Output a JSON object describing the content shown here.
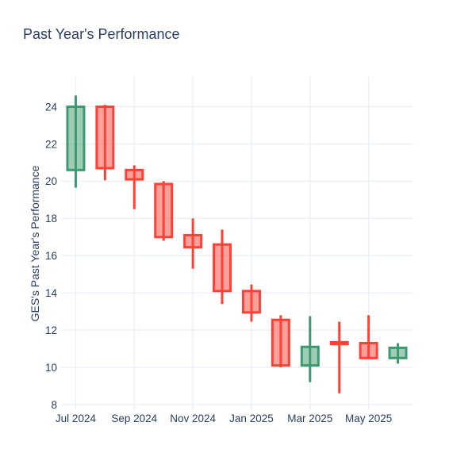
{
  "title": "Past Year's Performance",
  "colors": {
    "font": "#2a3f5f",
    "background": "#ffffff",
    "grid": "#ebf0f8",
    "increasing_line": "#3D9970",
    "increasing_fill": "rgba(61,153,112,0.5)",
    "decreasing_line": "#FF4136",
    "decreasing_fill": "rgba(255,65,54,0.5)"
  },
  "chart_data": {
    "type": "candlestick",
    "title": "Past Year's Performance",
    "xlabel": "",
    "ylabel": "GES's Past Year's Performance",
    "legend": "none",
    "grid": true,
    "ylim": [
      7.7,
      25.6
    ],
    "y_ticks": [
      8,
      10,
      12,
      14,
      16,
      18,
      20,
      22,
      24
    ],
    "x_tick_labels": [
      "Jul 2024",
      "Sep 2024",
      "Nov 2024",
      "Jan 2025",
      "Mar 2025",
      "May 2025"
    ],
    "x_tick_indices": [
      0,
      2,
      4,
      6,
      8,
      10
    ],
    "categories": [
      "Jul 2024",
      "Aug 2024",
      "Sep 2024",
      "Oct 2024",
      "Nov 2024",
      "Dec 2024",
      "Jan 2025",
      "Feb 2025",
      "Mar 2025",
      "Apr 2025",
      "May 2025",
      "Jun 2025"
    ],
    "ohlc": [
      {
        "open": 20.6,
        "high": 24.6,
        "low": 19.65,
        "close": 24.0
      },
      {
        "open": 24.0,
        "high": 24.1,
        "low": 20.05,
        "close": 20.7
      },
      {
        "open": 20.6,
        "high": 20.85,
        "low": 18.5,
        "close": 20.1
      },
      {
        "open": 19.85,
        "high": 20.0,
        "low": 16.8,
        "close": 17.0
      },
      {
        "open": 17.1,
        "high": 18.0,
        "low": 15.3,
        "close": 16.45
      },
      {
        "open": 16.6,
        "high": 17.4,
        "low": 13.4,
        "close": 14.1
      },
      {
        "open": 14.1,
        "high": 14.45,
        "low": 12.45,
        "close": 12.95
      },
      {
        "open": 12.55,
        "high": 12.8,
        "low": 10.0,
        "close": 10.1
      },
      {
        "open": 10.1,
        "high": 12.75,
        "low": 9.2,
        "close": 11.1
      },
      {
        "open": 11.35,
        "high": 12.45,
        "low": 8.6,
        "close": 11.25
      },
      {
        "open": 11.3,
        "high": 12.8,
        "low": 10.45,
        "close": 10.5
      },
      {
        "open": 10.5,
        "high": 11.3,
        "low": 10.2,
        "close": 11.05
      }
    ]
  }
}
